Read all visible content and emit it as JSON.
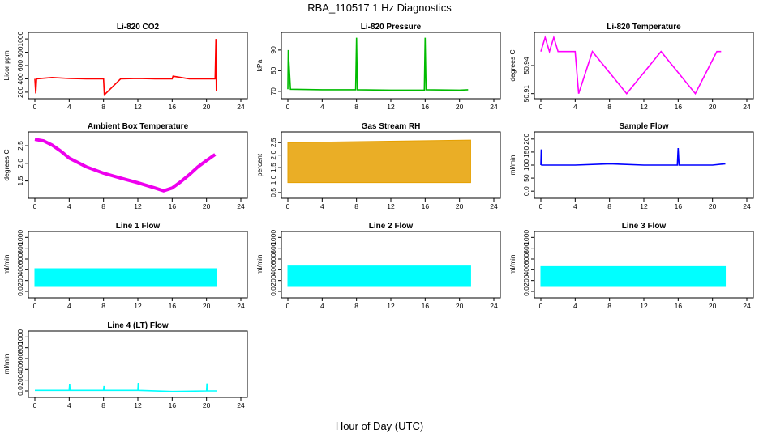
{
  "figure": {
    "title": "RBA_110517  1 Hz Diagnostics",
    "xlabel": "Hour of Day (UTC)"
  },
  "chart_data": [
    {
      "type": "line",
      "title": "Li-820 CO2",
      "ylabel": "Licor ppm",
      "color": "#ff0000",
      "xlim": [
        0,
        24
      ],
      "ylim": [
        150,
        1050
      ],
      "xticks": [
        0,
        4,
        8,
        12,
        16,
        20,
        24
      ],
      "yticks": [
        200,
        400,
        600,
        800,
        1000
      ],
      "series": [
        {
          "x": [
            0,
            0.1,
            0.2,
            2,
            4,
            6,
            8,
            8.1,
            10,
            12,
            14,
            16,
            16.1,
            18,
            20,
            21,
            21.1,
            21.15
          ],
          "y": [
            400,
            180,
            400,
            420,
            405,
            400,
            400,
            160,
            400,
            405,
            400,
            400,
            440,
            400,
            400,
            400,
            1000,
            220
          ]
        }
      ]
    },
    {
      "type": "line",
      "title": "Li-820 Pressure",
      "ylabel": "kPa",
      "color": "#00bb00",
      "xlim": [
        0,
        24
      ],
      "ylim": [
        68,
        97
      ],
      "xticks": [
        0,
        4,
        8,
        12,
        16,
        20,
        24
      ],
      "yticks": [
        70,
        80,
        90
      ],
      "series": [
        {
          "x": [
            0,
            0.05,
            0.3,
            4,
            7.9,
            8,
            8.1,
            12,
            15.9,
            16,
            16.1,
            20,
            21
          ],
          "y": [
            71,
            90,
            71,
            70.8,
            70.8,
            96,
            70.8,
            70.6,
            70.6,
            96,
            70.8,
            70.6,
            70.8
          ]
        }
      ]
    },
    {
      "type": "line",
      "title": "Li-820 Temperature",
      "ylabel": "degrees C",
      "color": "#ff00ff",
      "xlim": [
        0,
        24
      ],
      "ylim": [
        50.908,
        50.972
      ],
      "xticks": [
        0,
        4,
        8,
        12,
        16,
        20,
        24
      ],
      "yticks": [
        50.91,
        50.94
      ],
      "series": [
        {
          "x": [
            0,
            0.5,
            1,
            1.5,
            2,
            4,
            4.4,
            6,
            10,
            14,
            18,
            20.5,
            21
          ],
          "y": [
            50.955,
            50.97,
            50.955,
            50.97,
            50.955,
            50.955,
            50.91,
            50.955,
            50.91,
            50.955,
            50.91,
            50.955,
            50.955
          ]
        }
      ]
    },
    {
      "type": "line",
      "title": "Ambient Box Temperature",
      "ylabel": "degrees C",
      "color": "#ee00ee",
      "xlim": [
        0,
        24
      ],
      "ylim": [
        1.1,
        2.8
      ],
      "xticks": [
        0,
        4,
        8,
        12,
        16,
        20,
        24
      ],
      "yticks": [
        1.5,
        2.0,
        2.5
      ],
      "series": [
        {
          "x": [
            0,
            1,
            2,
            3,
            4,
            6,
            8,
            10,
            12,
            14,
            15,
            16,
            17,
            18,
            19,
            20,
            21
          ],
          "y": [
            2.68,
            2.64,
            2.52,
            2.35,
            2.15,
            1.9,
            1.72,
            1.58,
            1.45,
            1.3,
            1.22,
            1.3,
            1.48,
            1.68,
            1.9,
            2.08,
            2.25
          ]
        }
      ]
    },
    {
      "type": "scatter",
      "title": "Gas Stream RH",
      "ylabel": "percent",
      "color": "#e6a000",
      "xlim": [
        0,
        24
      ],
      "ylim": [
        0.4,
        2.8
      ],
      "xticks": [
        0,
        4,
        8,
        12,
        16,
        20,
        24
      ],
      "yticks": [
        0.5,
        1.0,
        1.5,
        2.0,
        2.5
      ],
      "series": [
        {
          "x": [
            0,
            21.3
          ],
          "low": [
            0.9,
            0.9
          ],
          "high": [
            2.5,
            2.6
          ]
        }
      ]
    },
    {
      "type": "line",
      "title": "Sample Flow",
      "ylabel": "ml/min",
      "color": "#0000ff",
      "xlim": [
        0,
        24
      ],
      "ylim": [
        -15,
        215
      ],
      "xticks": [
        0,
        4,
        8,
        12,
        16,
        20,
        24
      ],
      "yticks": [
        0,
        50,
        100,
        150,
        200
      ],
      "series": [
        {
          "x": [
            0,
            0.05,
            0.1,
            4,
            8,
            12,
            15.9,
            16,
            16.1,
            20,
            21.5
          ],
          "y": [
            100,
            160,
            100,
            100,
            105,
            100,
            100,
            165,
            100,
            100,
            105
          ]
        }
      ]
    },
    {
      "type": "area",
      "title": "Line 1 Flow",
      "ylabel": "ml/min",
      "color": "#00ffff",
      "xlim": [
        0,
        24
      ],
      "ylim": [
        -60,
        1050
      ],
      "xticks": [
        0,
        4,
        8,
        12,
        16,
        20,
        24
      ],
      "yticks": [
        0,
        200,
        400,
        600,
        800,
        1000
      ],
      "series": [
        {
          "x": [
            0,
            21.2
          ],
          "low": [
            90,
            90
          ],
          "high": [
            420,
            420
          ]
        }
      ]
    },
    {
      "type": "area",
      "title": "Line 2 Flow",
      "ylabel": "ml/min",
      "color": "#00ffff",
      "xlim": [
        0,
        24
      ],
      "ylim": [
        -60,
        1050
      ],
      "xticks": [
        0,
        4,
        8,
        12,
        16,
        20,
        24
      ],
      "yticks": [
        0,
        200,
        400,
        600,
        800,
        1000
      ],
      "series": [
        {
          "x": [
            0,
            21.3
          ],
          "low": [
            90,
            90
          ],
          "high": [
            470,
            470
          ]
        }
      ]
    },
    {
      "type": "area",
      "title": "Line 3 Flow",
      "ylabel": "ml/min",
      "color": "#00ffff",
      "xlim": [
        0,
        24
      ],
      "ylim": [
        -60,
        1050
      ],
      "xticks": [
        0,
        4,
        8,
        12,
        16,
        20,
        24
      ],
      "yticks": [
        0,
        200,
        400,
        600,
        800,
        1000
      ],
      "series": [
        {
          "x": [
            0,
            21.5
          ],
          "low": [
            90,
            90
          ],
          "high": [
            460,
            460
          ]
        }
      ]
    },
    {
      "type": "line",
      "title": "Line 4 (LT) Flow",
      "ylabel": "ml/min",
      "color": "#00ffff",
      "xlim": [
        0,
        24
      ],
      "ylim": [
        -60,
        1050
      ],
      "xticks": [
        0,
        4,
        8,
        12,
        16,
        20,
        24
      ],
      "yticks": [
        0,
        200,
        400,
        600,
        800,
        1000
      ],
      "series": [
        {
          "x": [
            0,
            4,
            4.05,
            4.1,
            8,
            8.05,
            8.1,
            12,
            12.05,
            12.1,
            16,
            20,
            20.05,
            20.1,
            21.2
          ],
          "y": [
            10,
            10,
            130,
            10,
            10,
            90,
            10,
            10,
            150,
            10,
            -10,
            0,
            140,
            0,
            0
          ]
        }
      ]
    }
  ]
}
